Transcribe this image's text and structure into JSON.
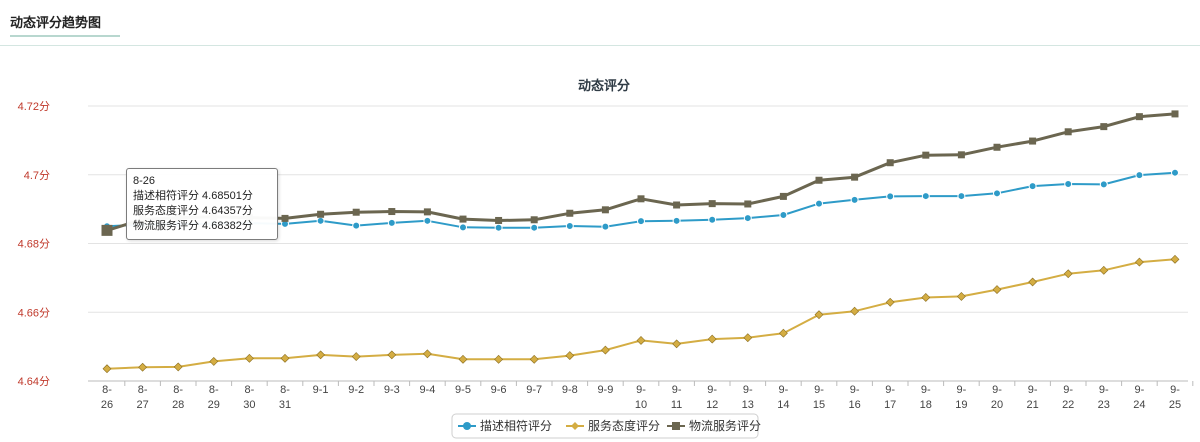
{
  "panel": {
    "title": "动态评分趋势图"
  },
  "tooltip": {
    "date": "8-26",
    "line1": "描述相符评分 4.68501分",
    "line2": "服务态度评分 4.64357分",
    "line3": "物流服务评分 4.68382分"
  },
  "colors": {
    "desc": "#2e9bc8",
    "service": "#d4ad43",
    "logistics": "#6b6650",
    "ytick": "#c0392b",
    "grid": "#e3e3e3"
  },
  "chart_data": {
    "type": "line",
    "title": "动态评分",
    "xlabel": "",
    "ylabel": "",
    "ylim": [
      4.64,
      4.72
    ],
    "yticks": [
      4.64,
      4.66,
      4.68,
      4.7,
      4.72
    ],
    "ytick_labels": [
      "4.64分",
      "4.66分",
      "4.68分",
      "4.7分",
      "4.72分"
    ],
    "categories": [
      "8-26",
      "8-27",
      "8-28",
      "8-29",
      "8-30",
      "8-31",
      "9-1",
      "9-2",
      "9-3",
      "9-4",
      "9-5",
      "9-6",
      "9-7",
      "9-8",
      "9-9",
      "9-10",
      "9-11",
      "9-12",
      "9-13",
      "9-14",
      "9-15",
      "9-16",
      "9-17",
      "9-18",
      "9-19",
      "9-20",
      "9-21",
      "9-22",
      "9-23",
      "9-24",
      "9-25"
    ],
    "category_labels": [
      [
        "8-",
        "26"
      ],
      [
        "8-",
        "27"
      ],
      [
        "8-",
        "28"
      ],
      [
        "8-",
        "29"
      ],
      [
        "8-",
        "30"
      ],
      [
        "8-",
        "31"
      ],
      [
        "9-1"
      ],
      [
        "9-2"
      ],
      [
        "9-3"
      ],
      [
        "9-4"
      ],
      [
        "9-5"
      ],
      [
        "9-6"
      ],
      [
        "9-7"
      ],
      [
        "9-8"
      ],
      [
        "9-9"
      ],
      [
        "9-",
        "10"
      ],
      [
        "9-",
        "11"
      ],
      [
        "9-",
        "12"
      ],
      [
        "9-",
        "13"
      ],
      [
        "9-",
        "14"
      ],
      [
        "9-",
        "15"
      ],
      [
        "9-",
        "16"
      ],
      [
        "9-",
        "17"
      ],
      [
        "9-",
        "18"
      ],
      [
        "9-",
        "19"
      ],
      [
        "9-",
        "20"
      ],
      [
        "9-",
        "21"
      ],
      [
        "9-",
        "22"
      ],
      [
        "9-",
        "23"
      ],
      [
        "9-",
        "24"
      ],
      [
        "9-",
        "25"
      ]
    ],
    "legend_position": "bottom",
    "grid": true,
    "series": [
      {
        "name": "描述相符评分",
        "color": "#2e9bc8",
        "marker": "circle",
        "values": [
          4.68501,
          4.6855,
          4.6856,
          4.6858,
          4.6859,
          4.6857,
          4.6866,
          4.6852,
          4.686,
          4.6866,
          4.6847,
          4.6846,
          4.6846,
          4.6851,
          4.6849,
          4.6865,
          4.6866,
          4.6869,
          4.6874,
          4.6883,
          4.6916,
          4.6927,
          4.6937,
          4.6938,
          4.6938,
          4.6946,
          4.6967,
          4.6973,
          4.6972,
          4.6999,
          4.7006
        ]
      },
      {
        "name": "服务态度评分",
        "color": "#d4ad43",
        "marker": "diamond",
        "values": [
          4.64357,
          4.644,
          4.6441,
          4.6457,
          4.6466,
          4.6466,
          4.6476,
          4.6471,
          4.6476,
          4.6479,
          4.6463,
          4.6463,
          4.6463,
          4.6474,
          4.649,
          4.6518,
          4.6508,
          4.6522,
          4.6526,
          4.6539,
          4.6593,
          4.6603,
          4.6629,
          4.6643,
          4.6646,
          4.6666,
          4.6688,
          4.6712,
          4.6722,
          4.6746,
          4.6754
        ]
      },
      {
        "name": "物流服务评分",
        "color": "#6b6650",
        "marker": "square",
        "values": [
          4.68382,
          4.687,
          4.6875,
          4.6878,
          4.6875,
          4.6873,
          4.6885,
          4.6891,
          4.6893,
          4.6892,
          4.6871,
          4.6867,
          4.6869,
          4.6888,
          4.6898,
          4.693,
          4.6912,
          4.6916,
          4.6915,
          4.6937,
          4.6984,
          4.6993,
          4.7035,
          4.7057,
          4.7058,
          4.708,
          4.7098,
          4.7125,
          4.714,
          4.7169,
          4.7177
        ]
      }
    ]
  }
}
